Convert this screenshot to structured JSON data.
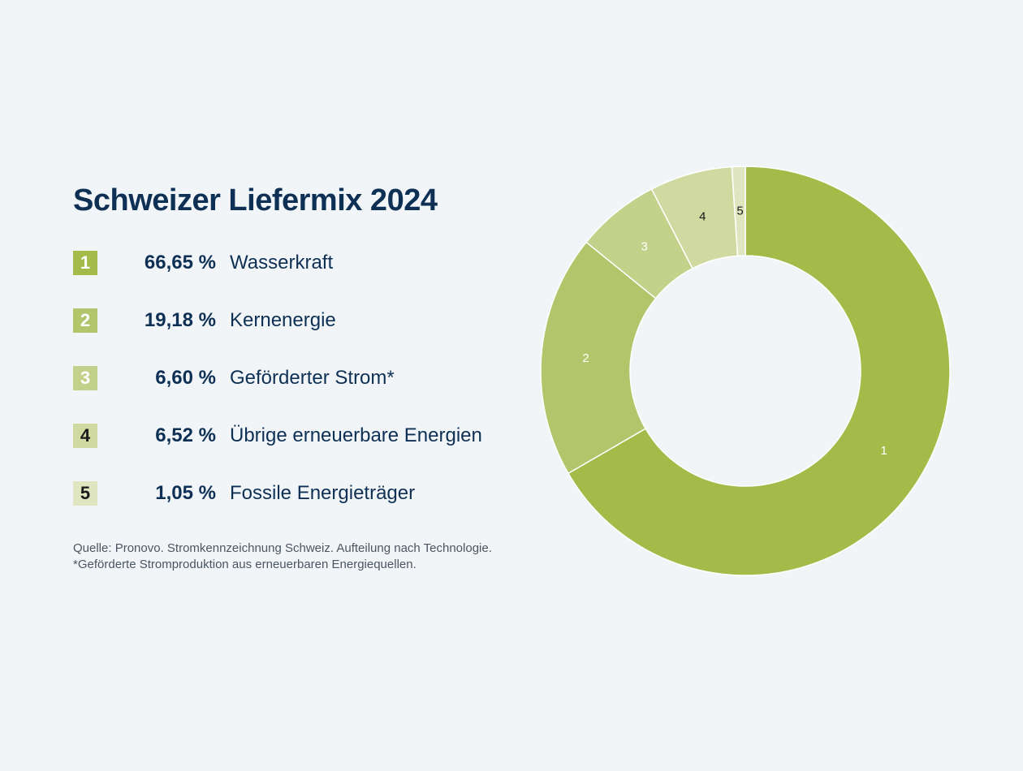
{
  "title": "Schweizer Liefermix 2024",
  "legend": [
    {
      "number": "1",
      "percent": "66,65 %",
      "label": "Wasserkraft"
    },
    {
      "number": "2",
      "percent": "19,18 %",
      "label": "Kernenergie"
    },
    {
      "number": "3",
      "percent": "6,60 %",
      "label": "Geförderter Strom*"
    },
    {
      "number": "4",
      "percent": "6,52 %",
      "label": "Übrige erneuerbare Energien"
    },
    {
      "number": "5",
      "percent": "1,05 %",
      "label": "Fossile Energieträger"
    }
  ],
  "source": {
    "line1": "Quelle: Pronovo. Stromkennzeichnung Schweiz. Aufteilung nach Technologie.",
    "line2": "*Geförderte Stromproduktion aus erneuerbaren Energiequellen."
  },
  "colors": {
    "text": "#0d3054",
    "background": "#f1f5f8",
    "segments": [
      "#a4bb4a",
      "#b2c56a",
      "#c3d18b",
      "#d0daa0",
      "#dfe5bf"
    ],
    "badge_text": [
      "#ffffff",
      "#ffffff",
      "#ffffff",
      "#1a1a1a",
      "#1a1a1a"
    ]
  },
  "chart_data": {
    "type": "pie",
    "style": "donut",
    "categories": [
      "Wasserkraft",
      "Kernenergie",
      "Geförderter Strom*",
      "Übrige erneuerbare Energien",
      "Fossile Energieträger"
    ],
    "values": [
      66.65,
      19.18,
      6.6,
      6.52,
      1.05
    ],
    "segment_labels": [
      "1",
      "2",
      "3",
      "4",
      "5"
    ],
    "start_angle_deg": 0,
    "direction": "clockwise",
    "title": "Schweizer Liefermix 2024"
  }
}
